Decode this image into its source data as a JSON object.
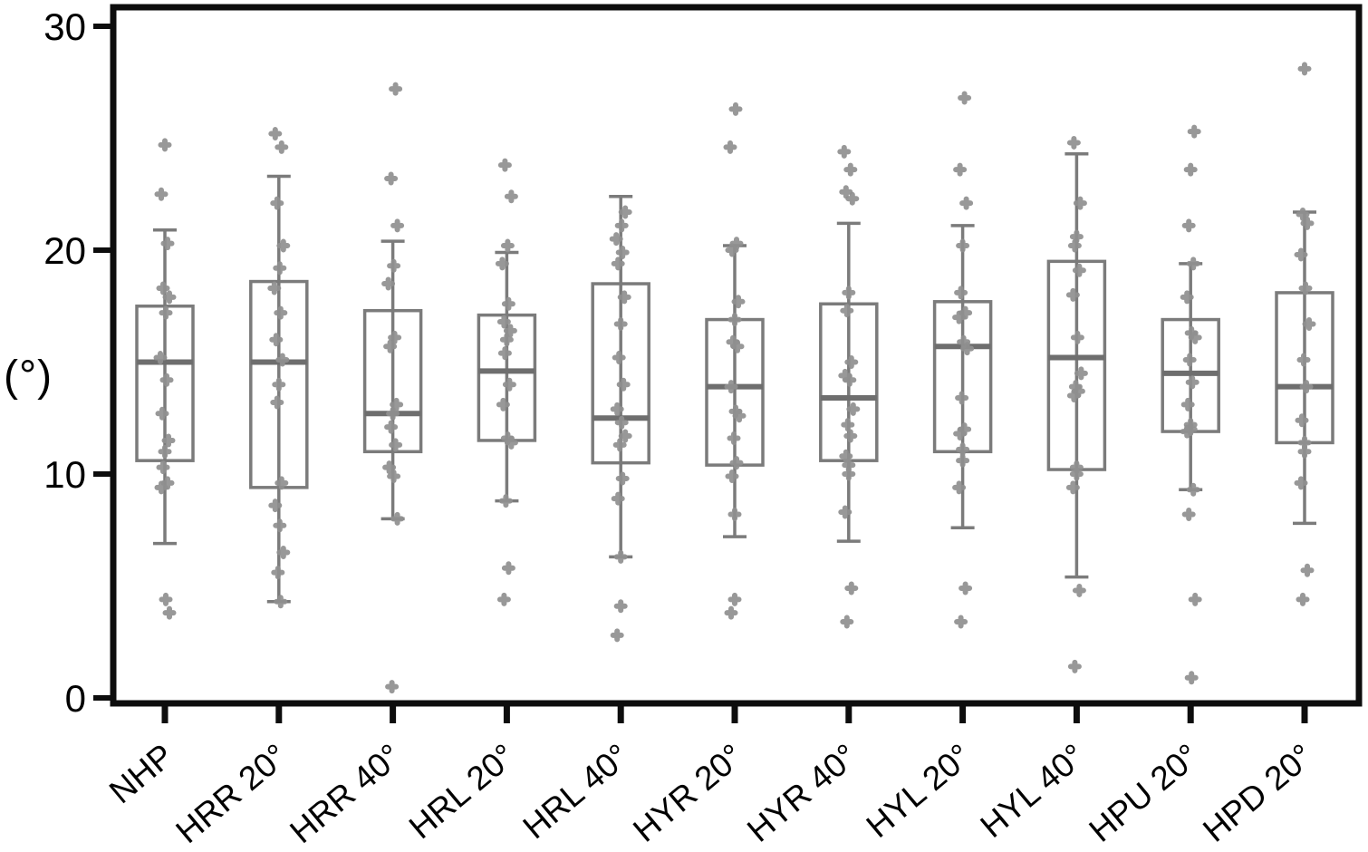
{
  "chart_data": {
    "type": "box",
    "title": "",
    "xlabel": "",
    "ylabel": "(°)",
    "y_ticks": [
      0,
      10,
      20,
      30
    ],
    "ylim": [
      -0.3,
      30.9
    ],
    "grid": false,
    "legend": "none",
    "point_style": "jittered plus markers",
    "categories": [
      "NHP",
      "HRR 20°",
      "HRR 40°",
      "HRL 20°",
      "HRL 40°",
      "HYR 20°",
      "HYR 40°",
      "HYL 20°",
      "HYL 40°",
      "HPU 20°",
      "HPD 20°"
    ],
    "series": [
      {
        "name": "NHP",
        "whislo": 6.9,
        "q1": 10.6,
        "med": 15.0,
        "q3": 17.5,
        "whishi": 20.9,
        "points": [
          24.7,
          22.5,
          20.3,
          18.3,
          17.9,
          17.2,
          15.2,
          14.2,
          12.7,
          11.5,
          11.0,
          10.3,
          9.6,
          9.4,
          4.4,
          3.8
        ]
      },
      {
        "name": "HRR 20°",
        "whislo": 4.3,
        "q1": 9.4,
        "med": 15.0,
        "q3": 18.6,
        "whishi": 23.3,
        "points": [
          25.2,
          24.6,
          22.1,
          20.2,
          19.2,
          18.3,
          17.2,
          16.0,
          15.1,
          14.0,
          13.2,
          9.6,
          8.6,
          7.7,
          6.5,
          5.6,
          4.3
        ]
      },
      {
        "name": "HRR 40°",
        "whislo": 8.0,
        "q1": 11.0,
        "med": 12.7,
        "q3": 17.3,
        "whishi": 20.4,
        "points": [
          27.2,
          23.2,
          21.1,
          19.3,
          18.5,
          16.1,
          15.7,
          13.1,
          12.7,
          12.1,
          11.3,
          10.3,
          9.9,
          8.0,
          0.5
        ]
      },
      {
        "name": "HRL 20°",
        "whislo": 8.8,
        "q1": 11.5,
        "med": 14.6,
        "q3": 17.1,
        "whishi": 19.9,
        "points": [
          23.8,
          22.4,
          20.2,
          19.4,
          17.6,
          16.8,
          16.4,
          16.0,
          15.4,
          14.0,
          13.1,
          11.6,
          11.4,
          8.8,
          5.8,
          4.4
        ]
      },
      {
        "name": "HRL 40°",
        "whislo": 6.3,
        "q1": 10.5,
        "med": 12.5,
        "q3": 18.5,
        "whishi": 22.4,
        "points": [
          21.7,
          21.1,
          20.5,
          19.9,
          19.4,
          17.9,
          16.7,
          15.2,
          14.0,
          12.9,
          12.3,
          11.7,
          11.3,
          9.8,
          8.9,
          6.3,
          4.1,
          2.8
        ]
      },
      {
        "name": "HYR 20°",
        "whislo": 7.2,
        "q1": 10.4,
        "med": 13.9,
        "q3": 16.9,
        "whishi": 20.2,
        "points": [
          26.3,
          24.6,
          20.3,
          20.0,
          17.7,
          16.9,
          15.9,
          15.7,
          13.9,
          12.8,
          12.6,
          11.6,
          10.5,
          9.9,
          8.2,
          4.4,
          3.8
        ]
      },
      {
        "name": "HYR 40°",
        "whislo": 7.0,
        "q1": 10.6,
        "med": 13.4,
        "q3": 17.6,
        "whishi": 21.2,
        "points": [
          24.4,
          23.6,
          22.6,
          22.3,
          18.1,
          17.3,
          15.0,
          14.4,
          14.2,
          12.9,
          12.2,
          11.7,
          10.8,
          10.4,
          10.0,
          8.3,
          4.9,
          3.4
        ]
      },
      {
        "name": "HYL 20°",
        "whislo": 7.6,
        "q1": 11.0,
        "med": 15.7,
        "q3": 17.7,
        "whishi": 21.1,
        "points": [
          26.8,
          23.6,
          22.1,
          20.2,
          18.1,
          17.2,
          17.0,
          15.9,
          15.6,
          13.4,
          12.0,
          11.8,
          11.1,
          10.6,
          9.4,
          4.9,
          3.4
        ]
      },
      {
        "name": "HYL 40°",
        "whislo": 5.4,
        "q1": 10.2,
        "med": 15.2,
        "q3": 19.5,
        "whishi": 24.3,
        "points": [
          24.8,
          22.1,
          20.6,
          20.2,
          19.1,
          18.0,
          16.1,
          14.5,
          13.9,
          13.7,
          13.5,
          10.3,
          10.0,
          9.4,
          4.8,
          1.4
        ]
      },
      {
        "name": "HPU 20°",
        "whislo": 9.3,
        "q1": 11.9,
        "med": 14.5,
        "q3": 16.9,
        "whishi": 19.4,
        "points": [
          25.3,
          23.6,
          21.1,
          19.4,
          17.9,
          16.3,
          16.1,
          15.1,
          14.1,
          13.1,
          12.2,
          12.0,
          11.9,
          9.3,
          8.2,
          4.4,
          0.9
        ]
      },
      {
        "name": "HPD 20°",
        "whislo": 7.8,
        "q1": 11.4,
        "med": 13.9,
        "q3": 18.1,
        "whishi": 21.7,
        "points": [
          28.1,
          21.6,
          21.2,
          19.8,
          18.3,
          16.7,
          15.1,
          13.9,
          12.4,
          11.4,
          11.0,
          9.6,
          5.7,
          4.4
        ]
      }
    ],
    "colors": {
      "background": "#ffffff",
      "axis": "#0d0d0d",
      "tick_label": "#000000",
      "box_stroke": "#7b7b7b",
      "median_stroke": "#6e6e6e",
      "point_fill": "#8f8f8f"
    }
  }
}
